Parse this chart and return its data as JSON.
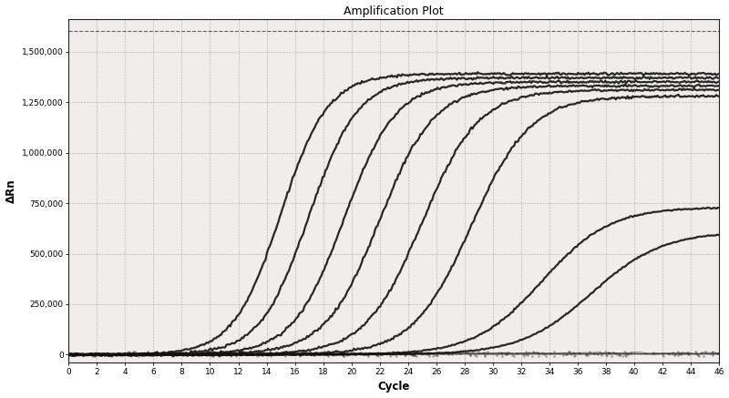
{
  "title": "Amplification Plot",
  "xlabel": "Cycle",
  "ylabel": "ΔRn",
  "xlim": [
    0,
    46
  ],
  "ylim": [
    -40000,
    1660000
  ],
  "xticks": [
    0,
    2,
    4,
    6,
    8,
    10,
    12,
    14,
    16,
    18,
    20,
    22,
    24,
    26,
    28,
    30,
    32,
    34,
    36,
    38,
    40,
    42,
    44,
    46
  ],
  "yticks": [
    0,
    250000,
    500000,
    750000,
    1000000,
    1250000,
    1500000
  ],
  "ytick_labels": [
    "0",
    "250,000",
    "500,000",
    "750,000",
    "1,000,000",
    "1,250,000",
    "1,500,000"
  ],
  "background_color": "#ffffff",
  "plot_bg_color": "#f0eeea",
  "grid_color": "#888888",
  "curve_color": "#111111",
  "noise_color": "#333333",
  "dashed_top_color": "#555555",
  "sigmoid_curves": [
    {
      "midpoint": 15.0,
      "L": 1390000,
      "k": 0.6
    },
    {
      "midpoint": 17.0,
      "L": 1370000,
      "k": 0.58
    },
    {
      "midpoint": 19.5,
      "L": 1350000,
      "k": 0.55
    },
    {
      "midpoint": 22.0,
      "L": 1330000,
      "k": 0.52
    },
    {
      "midpoint": 25.0,
      "L": 1310000,
      "k": 0.5
    },
    {
      "midpoint": 28.5,
      "L": 1280000,
      "k": 0.48
    },
    {
      "midpoint": 33.5,
      "L": 730000,
      "k": 0.42
    },
    {
      "midpoint": 37.0,
      "L": 610000,
      "k": 0.4
    }
  ],
  "noisy_flat_curves": [
    {
      "seed": 10,
      "base": 8000,
      "scale": 2000,
      "drift": 1500
    },
    {
      "seed": 20,
      "base": 5000,
      "scale": 1500,
      "drift": 1200
    },
    {
      "seed": 30,
      "base": 3000,
      "scale": 1200,
      "drift": 800
    },
    {
      "seed": 40,
      "base": 2000,
      "scale": 800,
      "drift": 600
    },
    {
      "seed": 50,
      "base": 6000,
      "scale": 1800,
      "drift": 1000
    },
    {
      "seed": 60,
      "base": 4000,
      "scale": 1000,
      "drift": 700
    }
  ],
  "top_dashed_y": 1600000,
  "figsize": [
    8.0,
    4.37
  ],
  "dpi": 100
}
